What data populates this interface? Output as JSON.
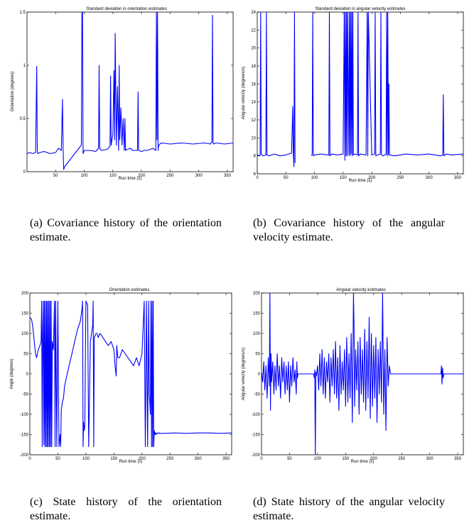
{
  "captions": {
    "a": "(a) Covariance history of the orientation estimate.",
    "b": "(b) Covariance history of the angular velocity estimate.",
    "c": "(c) State history of the orientation estimate.",
    "d": "(d) State history of the angular velocity estimate."
  },
  "chart_data": [
    {
      "id": "a",
      "type": "line",
      "title": "Standard deviation in orientation estimates",
      "xlabel": "Run time (s)",
      "ylabel": "Orientation (degrees)",
      "xlim": [
        0,
        360
      ],
      "ylim": [
        0,
        1.5
      ],
      "xticks": [
        50,
        100,
        150,
        200,
        250,
        300,
        350
      ],
      "yticks": [
        0,
        0.5,
        1,
        1.5
      ],
      "color": "#0000ff",
      "series": [
        {
          "x": [
            0,
            5,
            10,
            15,
            17,
            18,
            19,
            22,
            30,
            40,
            50,
            55,
            60,
            62,
            63,
            64,
            66,
            95,
            96,
            97,
            98,
            100,
            110,
            120,
            125,
            126,
            127,
            130,
            140,
            145,
            146,
            147,
            150,
            152,
            153,
            154,
            156,
            158,
            160,
            161,
            162,
            164,
            166,
            168,
            170,
            171,
            172,
            175,
            180,
            185,
            190,
            193,
            194,
            195,
            200,
            205,
            210,
            215,
            220,
            225,
            226,
            227,
            228,
            229,
            230,
            231,
            232,
            235,
            250,
            270,
            290,
            310,
            320,
            323,
            324,
            325,
            326,
            330,
            345,
            360
          ],
          "y": [
            0.17,
            0.18,
            0.17,
            0.18,
            0.99,
            0.18,
            0.17,
            0.18,
            0.19,
            0.17,
            0.18,
            0.22,
            0.2,
            0.68,
            0.22,
            0.02,
            0.05,
            0.25,
            1.5,
            1.5,
            0.17,
            0.2,
            0.2,
            0.19,
            0.22,
            1.0,
            0.22,
            0.2,
            0.21,
            0.24,
            0.9,
            0.25,
            0.35,
            0.95,
            0.3,
            1.3,
            0.25,
            0.8,
            0.2,
            1.0,
            0.3,
            0.6,
            0.25,
            0.5,
            0.2,
            0.5,
            0.2,
            0.21,
            0.22,
            0.2,
            0.2,
            0.2,
            0.75,
            0.2,
            0.19,
            0.2,
            0.2,
            0.21,
            0.22,
            0.2,
            1.5,
            0.3,
            1.5,
            0.2,
            0.25,
            0.25,
            0.26,
            0.27,
            0.26,
            0.27,
            0.26,
            0.27,
            0.26,
            0.28,
            1.47,
            0.27,
            0.26,
            0.27,
            0.26,
            0.27
          ]
        }
      ]
    },
    {
      "id": "b",
      "type": "line",
      "title": "Standard deviation in angular velocity estimates",
      "xlabel": "Run time (s)",
      "ylabel": "Angular velocity (degrees/s)",
      "xlim": [
        0,
        360
      ],
      "ylim": [
        6,
        24
      ],
      "xticks": [
        0,
        50,
        100,
        150,
        200,
        250,
        300,
        350
      ],
      "yticks": [
        6,
        8,
        10,
        12,
        14,
        16,
        18,
        20,
        22,
        24
      ],
      "color": "#0000ff",
      "series": [
        {
          "x": [
            0,
            5,
            6,
            7,
            10,
            15,
            16,
            17,
            20,
            30,
            40,
            50,
            60,
            62,
            63,
            64,
            65,
            66,
            67,
            68,
            70,
            90,
            95,
            96,
            97,
            98,
            100,
            110,
            125,
            126,
            127,
            130,
            140,
            150,
            152,
            153,
            154,
            155,
            156,
            157,
            158,
            160,
            161,
            162,
            163,
            164,
            165,
            166,
            167,
            168,
            170,
            175,
            176,
            177,
            180,
            190,
            192,
            193,
            194,
            200,
            205,
            206,
            207,
            210,
            215,
            216,
            217,
            220,
            225,
            226,
            227,
            228,
            229,
            230,
            231,
            240,
            260,
            280,
            300,
            320,
            324,
            325,
            326,
            330,
            340,
            360
          ],
          "y": [
            8.1,
            8.0,
            24,
            8.2,
            8.0,
            8.1,
            24,
            8.1,
            8.0,
            8.2,
            8.0,
            8.1,
            8.3,
            13.5,
            8.2,
            6.8,
            24,
            7.2,
            null,
            null,
            null,
            null,
            8.0,
            8.2,
            24,
            8.0,
            8.1,
            8.2,
            8.1,
            24,
            8.0,
            8.2,
            8.1,
            8.2,
            24,
            7.5,
            24,
            8.0,
            24,
            8.0,
            24,
            8.1,
            24,
            8.0,
            24,
            8.2,
            24,
            8.0,
            24,
            8.1,
            8.2,
            8.1,
            24,
            8.0,
            8.2,
            8.1,
            24,
            8.0,
            24,
            8.1,
            8.2,
            24,
            8.0,
            8.1,
            8.2,
            24,
            8.1,
            8.0,
            8.2,
            24,
            8.0,
            24,
            8.1,
            16,
            8.1,
            8.0,
            8.2,
            8.1,
            8.2,
            8.0,
            8.1,
            14.8,
            8.0,
            8.2,
            8.1,
            8.2
          ]
        }
      ]
    },
    {
      "id": "c",
      "type": "line",
      "title": "Orientation estimates",
      "xlabel": "Run time (s)",
      "ylabel": "Angle (degrees)",
      "xlim": [
        0,
        360
      ],
      "ylim": [
        -200,
        200
      ],
      "xticks": [
        0,
        50,
        100,
        150,
        200,
        250,
        300,
        350
      ],
      "yticks": [
        -200,
        -150,
        -100,
        -50,
        0,
        50,
        100,
        150,
        200
      ],
      "color": "#0000ff",
      "series": [
        {
          "x": [
            0,
            3,
            5,
            8,
            10,
            12,
            15,
            18,
            20,
            21,
            22,
            23,
            24,
            25,
            26,
            27,
            28,
            29,
            30,
            31,
            32,
            33,
            34,
            35,
            36,
            37,
            38,
            39,
            40,
            42,
            44,
            45,
            46,
            48,
            50,
            52,
            54,
            55,
            56,
            58,
            60,
            62,
            65,
            70,
            75,
            80,
            85,
            90,
            93,
            94,
            95,
            96,
            97,
            98,
            100,
            103,
            105,
            108,
            110,
            112,
            113,
            114,
            115,
            118,
            120,
            122,
            125,
            128,
            130,
            135,
            140,
            145,
            150,
            152,
            154,
            155,
            157,
            160,
            165,
            170,
            175,
            180,
            185,
            190,
            195,
            200,
            204,
            206,
            208,
            210,
            212,
            213,
            214,
            215,
            216,
            217,
            218,
            219,
            220,
            221,
            222,
            223,
            224,
            225,
            226,
            227,
            228,
            229,
            230,
            231,
            232,
            240,
            260,
            280,
            300,
            320,
            340,
            360
          ],
          "y": [
            140,
            135,
            120,
            80,
            50,
            40,
            60,
            70,
            80,
            180,
            -180,
            100,
            180,
            -175,
            180,
            -180,
            180,
            -180,
            180,
            -180,
            180,
            -180,
            180,
            -180,
            180,
            -180,
            180,
            -180,
            80,
            60,
            180,
            -180,
            180,
            -180,
            180,
            -180,
            -150,
            -180,
            -90,
            -70,
            -60,
            -30,
            -10,
            20,
            50,
            80,
            110,
            130,
            160,
            180,
            -180,
            -120,
            -140,
            -130,
            180,
            170,
            -180,
            80,
            100,
            120,
            180,
            -180,
            90,
            100,
            100,
            90,
            100,
            95,
            90,
            80,
            70,
            80,
            60,
            20,
            -5,
            70,
            40,
            40,
            60,
            50,
            40,
            30,
            20,
            40,
            20,
            50,
            180,
            -180,
            180,
            -180,
            180,
            -50,
            -70,
            -100,
            180,
            -180,
            180,
            -180,
            180,
            -180,
            -140,
            -150,
            -145,
            -150,
            -148,
            -146,
            -147,
            -146,
            -147,
            -146,
            -147,
            -147,
            -146,
            -147,
            -146,
            -146,
            -147,
            -146
          ]
        }
      ]
    },
    {
      "id": "d",
      "type": "line",
      "title": "Angular velocity estimates",
      "xlabel": "Run time (s)",
      "ylabel": "Angular velocity (degrees/s)",
      "xlim": [
        0,
        360
      ],
      "ylim": [
        -200,
        200
      ],
      "xticks": [
        0,
        50,
        100,
        150,
        200,
        250,
        300,
        350
      ],
      "yticks": [
        -200,
        -150,
        -100,
        -50,
        0,
        50,
        100,
        150,
        200
      ],
      "color": "#0000ff",
      "series": [
        {
          "x": [
            0,
            2,
            4,
            6,
            8,
            10,
            12,
            14,
            15,
            16,
            17,
            18,
            20,
            22,
            24,
            26,
            28,
            30,
            32,
            34,
            36,
            38,
            40,
            42,
            44,
            46,
            48,
            50,
            52,
            54,
            56,
            58,
            60,
            62,
            63,
            64,
            65,
            66,
            70,
            80,
            90,
            93,
            94,
            95,
            96,
            97,
            98,
            100,
            102,
            104,
            106,
            108,
            110,
            112,
            114,
            116,
            118,
            120,
            122,
            124,
            126,
            128,
            130,
            132,
            134,
            136,
            138,
            140,
            142,
            144,
            146,
            148,
            150,
            152,
            154,
            156,
            158,
            160,
            162,
            164,
            165,
            166,
            168,
            170,
            172,
            174,
            176,
            178,
            180,
            182,
            184,
            186,
            188,
            190,
            192,
            194,
            196,
            198,
            200,
            202,
            204,
            206,
            208,
            210,
            212,
            214,
            216,
            218,
            220,
            222,
            224,
            226,
            228,
            230,
            232,
            234,
            240,
            260,
            280,
            300,
            318,
            320,
            321,
            322,
            323,
            324,
            325,
            330,
            340,
            350,
            360
          ],
          "y": [
            5,
            -20,
            30,
            -40,
            20,
            -60,
            40,
            -30,
            200,
            -90,
            50,
            -20,
            30,
            -50,
            20,
            -40,
            50,
            -30,
            20,
            -60,
            40,
            -20,
            30,
            -50,
            20,
            -40,
            30,
            -70,
            20,
            -30,
            40,
            -20,
            10,
            -50,
            30,
            -10,
            0,
            0,
            0,
            0,
            0,
            0,
            -10,
            10,
            -200,
            5,
            -5,
            20,
            -40,
            50,
            -30,
            60,
            -50,
            40,
            -60,
            30,
            -20,
            50,
            -70,
            40,
            -30,
            60,
            -50,
            80,
            -60,
            40,
            -90,
            70,
            -50,
            30,
            -40,
            60,
            -80,
            90,
            -70,
            50,
            -60,
            100,
            -120,
            200,
            120,
            -80,
            60,
            -40,
            80,
            -100,
            90,
            -50,
            60,
            -70,
            110,
            -90,
            80,
            -60,
            140,
            -110,
            100,
            -80,
            70,
            -60,
            90,
            -120,
            60,
            -50,
            80,
            -70,
            200,
            -100,
            60,
            -140,
            90,
            -30,
            20,
            0,
            0,
            0,
            0,
            0,
            0,
            0,
            0,
            0,
            20,
            -25,
            15,
            -10,
            0,
            0,
            0,
            0,
            0
          ]
        }
      ]
    }
  ]
}
